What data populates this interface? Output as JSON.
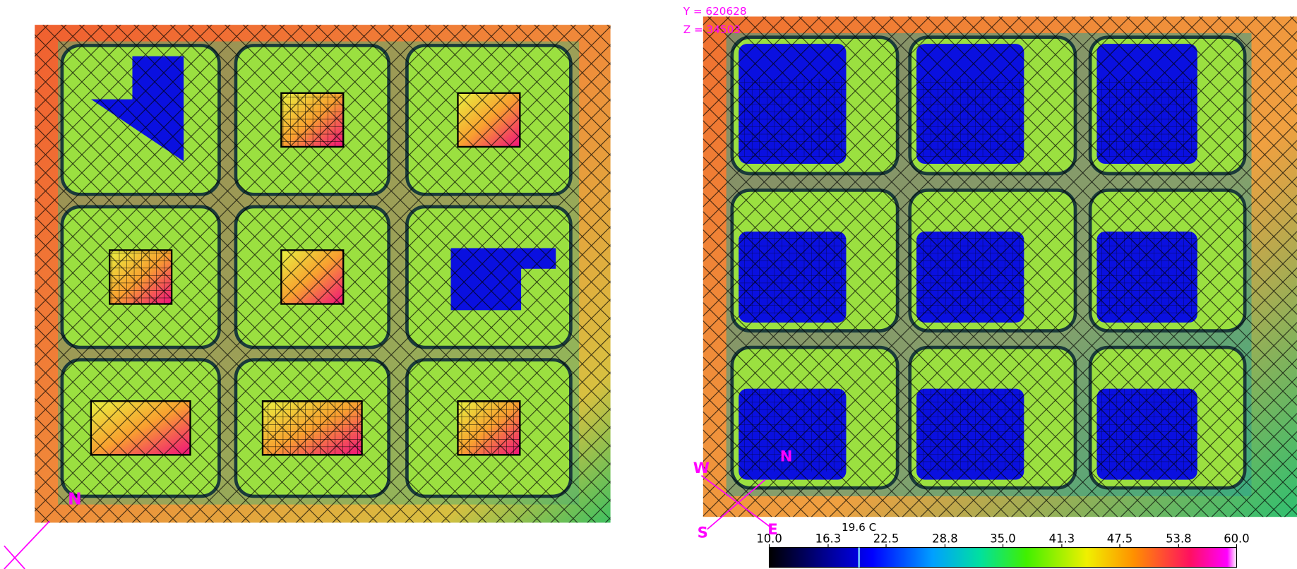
{
  "left_view": {
    "compass_north": "N"
  },
  "right_view": {
    "coords": [
      "Y = 620628",
      "Z = 34503"
    ],
    "compass": {
      "north": "N",
      "west": "W",
      "south": "S",
      "east": "E"
    }
  },
  "legend": {
    "range": [
      10,
      60
    ],
    "ticks": [
      {
        "value": 10,
        "label": "10.0"
      },
      {
        "value": 16.3,
        "label": "16.3"
      },
      {
        "value": 22.5,
        "label": "22.5"
      },
      {
        "value": 28.8,
        "label": "28.8"
      },
      {
        "value": 35,
        "label": "35.0"
      },
      {
        "value": 41.3,
        "label": "41.3"
      },
      {
        "value": 47.5,
        "label": "47.5"
      },
      {
        "value": 53.8,
        "label": "53.8"
      },
      {
        "value": 60,
        "label": "60.0"
      }
    ],
    "marker": {
      "value": 19.6,
      "label": "19.6 C"
    }
  }
}
